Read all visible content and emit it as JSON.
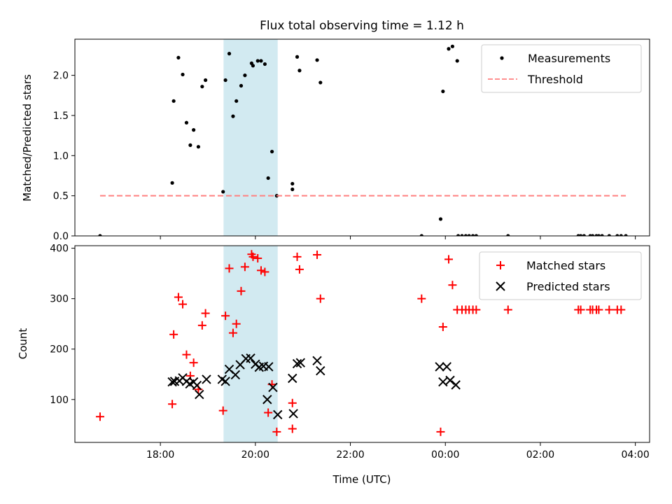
{
  "chart_data": [
    {
      "type": "scatter",
      "title": "Flux total observing time = 1.12 h",
      "xlabel": "",
      "ylabel": "Matched/Predicted stars",
      "ylim": [
        0,
        2.45
      ],
      "yticks": [
        0.0,
        0.5,
        1.0,
        1.5,
        2.0
      ],
      "ytick_labels": [
        "0.0",
        "0.5",
        "1.0",
        "1.5",
        "2.0"
      ],
      "xlim_hours": [
        16.2,
        28.3
      ],
      "xticks_hours": [
        18,
        20,
        22,
        24,
        26,
        28
      ],
      "legend_position": "top-right",
      "shaded_span_hours": [
        19.33,
        20.47
      ],
      "series": [
        {
          "name": "Measurements",
          "kind": "dot",
          "color": "#000000",
          "x": [
            16.73,
            18.25,
            18.28,
            18.38,
            18.47,
            18.55,
            18.63,
            18.7,
            18.8,
            18.88,
            18.95,
            19.32,
            19.37,
            19.45,
            19.53,
            19.6,
            19.7,
            19.78,
            19.92,
            19.95,
            20.05,
            20.12,
            20.2,
            20.27,
            20.35,
            20.45,
            20.78,
            20.78,
            20.88,
            20.93,
            21.3,
            21.37,
            23.5,
            23.9,
            23.95,
            24.07,
            24.15,
            24.25,
            24.27,
            24.35,
            24.43,
            24.5,
            24.58,
            24.65,
            25.32,
            26.8,
            26.85,
            26.92,
            27.05,
            27.1,
            27.18,
            27.23,
            27.3,
            27.45,
            27.62,
            27.7,
            27.8
          ],
          "y": [
            0.0,
            0.66,
            1.68,
            2.22,
            2.01,
            1.41,
            1.13,
            1.32,
            1.11,
            1.86,
            1.94,
            0.55,
            1.94,
            2.27,
            1.49,
            1.68,
            1.87,
            2.0,
            2.15,
            2.12,
            2.18,
            2.18,
            2.14,
            0.72,
            1.05,
            0.5,
            0.58,
            0.65,
            2.23,
            2.06,
            2.19,
            1.91,
            0.0,
            0.21,
            1.8,
            2.33,
            2.36,
            2.18,
            0.0,
            0.0,
            0.0,
            0.0,
            0.0,
            0.0,
            0.0,
            0.0,
            0.0,
            0.0,
            0.0,
            0.0,
            0.0,
            0.0,
            0.0,
            0.0,
            0.0,
            0.0,
            0.0
          ]
        },
        {
          "name": "Threshold",
          "kind": "dashed-line",
          "color": "#ff8080",
          "x": [
            16.73,
            27.8
          ],
          "y": [
            0.5,
            0.5
          ]
        }
      ]
    },
    {
      "type": "scatter",
      "title": "",
      "xlabel": "Time (UTC)",
      "ylabel": "Count",
      "ylim": [
        15,
        405
      ],
      "yticks": [
        100,
        200,
        300,
        400
      ],
      "ytick_labels": [
        "100",
        "200",
        "300",
        "400"
      ],
      "xlim_hours": [
        16.2,
        28.3
      ],
      "xticks_hours": [
        18,
        20,
        22,
        24,
        26,
        28
      ],
      "xtick_labels": [
        "18:00",
        "20:00",
        "22:00",
        "00:00",
        "02:00",
        "04:00"
      ],
      "legend_position": "top-right",
      "shaded_span_hours": [
        19.33,
        20.47
      ],
      "series": [
        {
          "name": "Matched stars",
          "kind": "plus",
          "color": "#ff0000",
          "x": [
            16.73,
            18.25,
            18.28,
            18.38,
            18.47,
            18.55,
            18.63,
            18.7,
            18.8,
            18.88,
            18.95,
            19.32,
            19.37,
            19.45,
            19.53,
            19.6,
            19.7,
            19.78,
            19.92,
            19.95,
            20.05,
            20.12,
            20.2,
            20.27,
            20.35,
            20.45,
            20.78,
            20.78,
            20.88,
            20.93,
            21.3,
            21.37,
            23.5,
            23.9,
            23.95,
            24.07,
            24.15,
            24.25,
            24.35,
            24.43,
            24.5,
            24.58,
            24.65,
            25.32,
            26.8,
            26.85,
            27.05,
            27.1,
            27.18,
            27.23,
            27.45,
            27.62,
            27.7
          ],
          "y": [
            66,
            91,
            229,
            303,
            289,
            189,
            147,
            173,
            120,
            247,
            271,
            78,
            266,
            360,
            232,
            250,
            315,
            363,
            388,
            383,
            380,
            356,
            353,
            74,
            130,
            36,
            42,
            93,
            383,
            358,
            387,
            300,
            300,
            36,
            244,
            378,
            327,
            278,
            278,
            278,
            278,
            278,
            278,
            278,
            278,
            278,
            278,
            278,
            278,
            278,
            278,
            278,
            278
          ]
        },
        {
          "name": "Predicted stars",
          "kind": "cross",
          "color": "#000000",
          "x": [
            18.25,
            18.3,
            18.4,
            18.47,
            18.55,
            18.62,
            18.7,
            18.77,
            18.82,
            18.97,
            19.3,
            19.37,
            19.45,
            19.58,
            19.68,
            19.8,
            19.9,
            20.0,
            20.08,
            20.17,
            20.25,
            20.28,
            20.37,
            20.47,
            20.78,
            20.8,
            20.88,
            20.95,
            21.3,
            21.37,
            23.88,
            23.95,
            24.03,
            24.1,
            24.22
          ],
          "y": [
            135,
            136,
            137,
            143,
            136,
            131,
            135,
            128,
            110,
            140,
            140,
            136,
            160,
            149,
            169,
            181,
            182,
            170,
            164,
            166,
            100,
            165,
            124,
            70,
            142,
            72,
            171,
            173,
            177,
            157,
            165,
            135,
            165,
            138,
            129
          ]
        }
      ]
    }
  ]
}
